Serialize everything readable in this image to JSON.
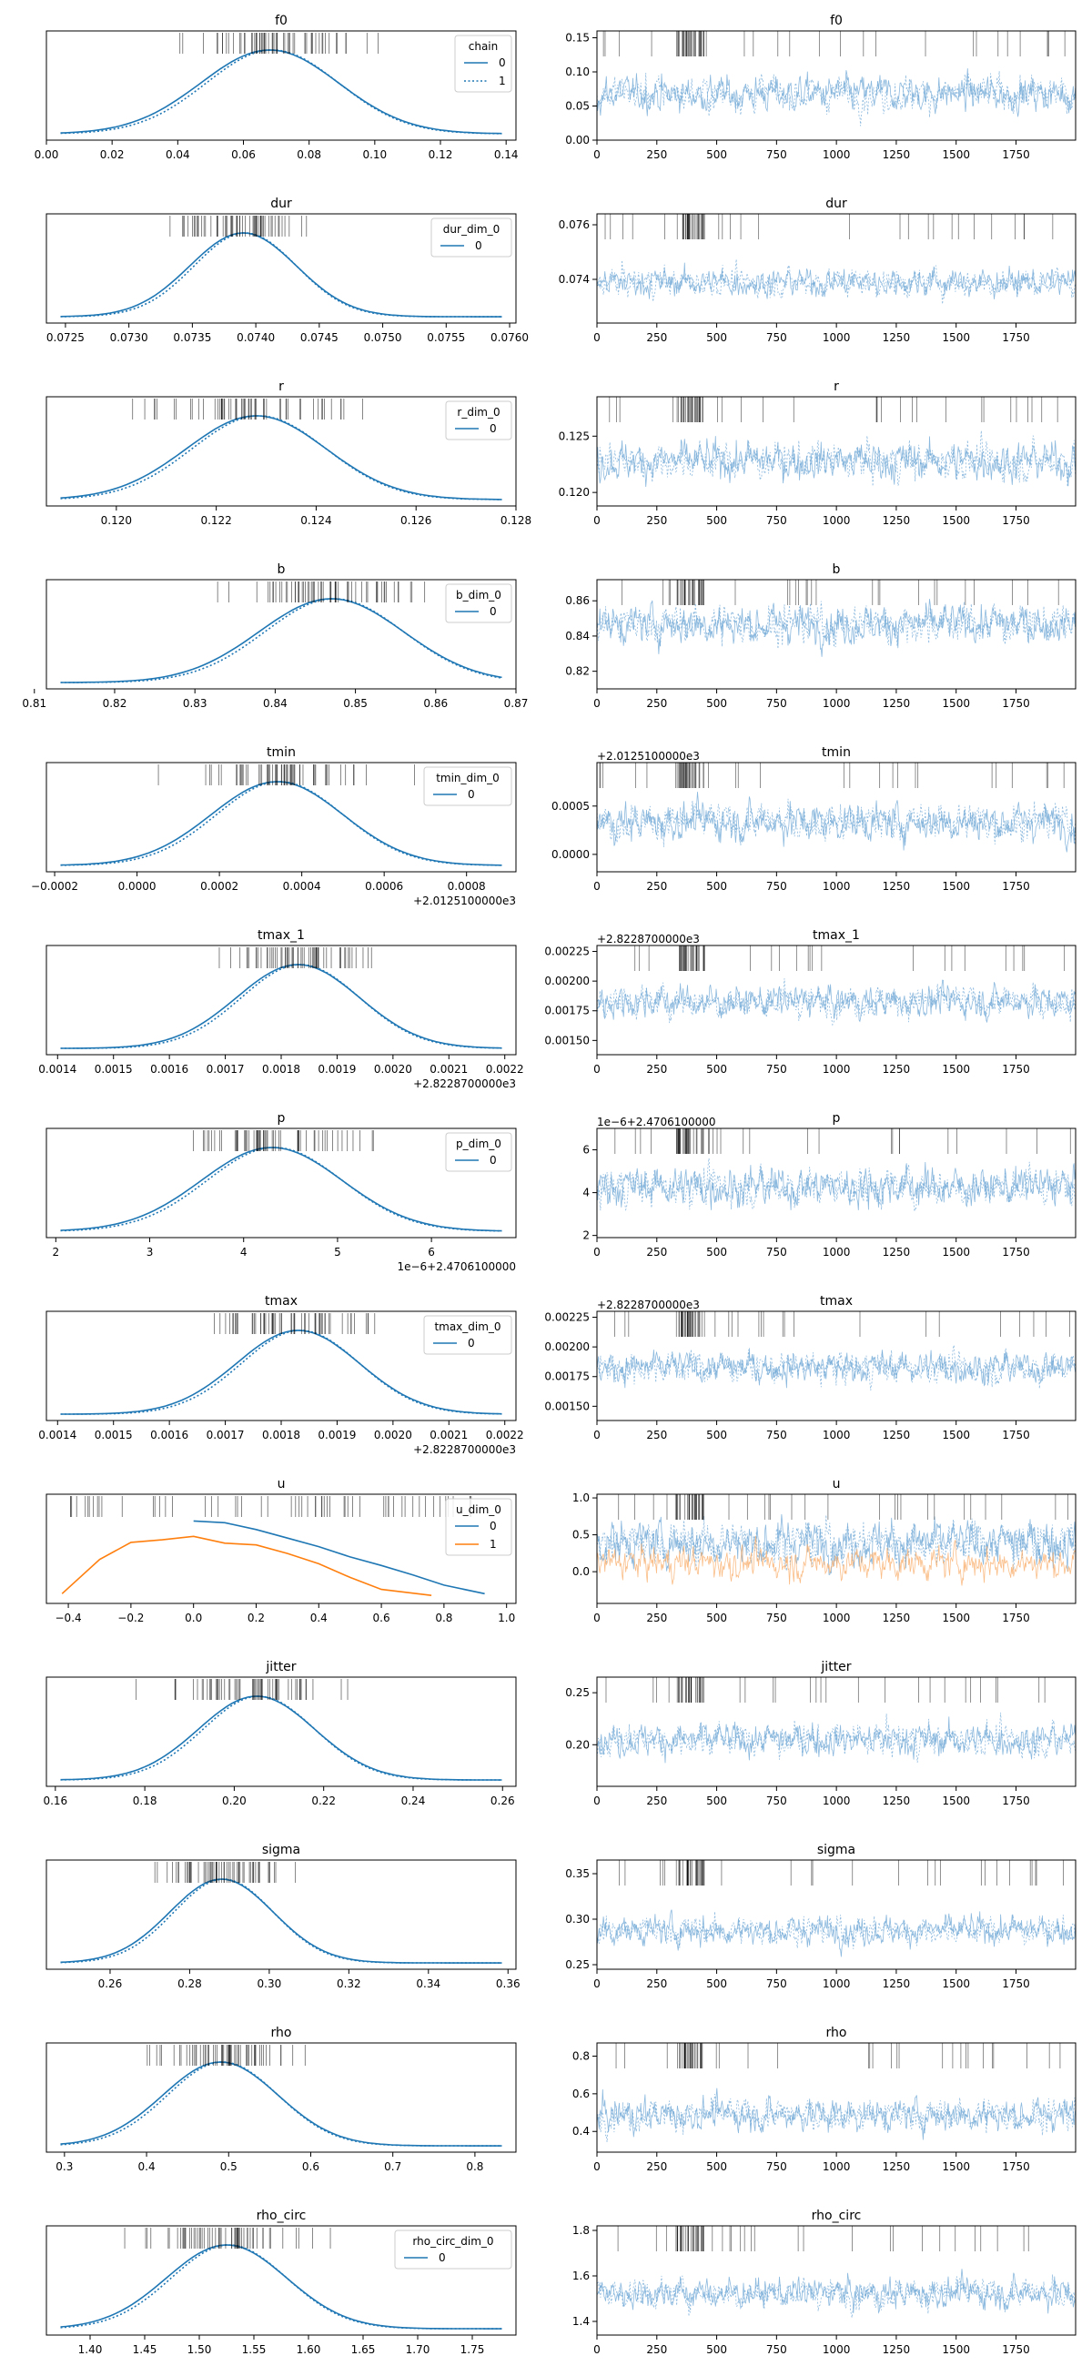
{
  "figure": {
    "type": "arviz-trace-plot"
  },
  "colors": {
    "chain0": "#1f77b4",
    "chain1": "#1f77b4",
    "series1": "#ff7f0e",
    "trace0": "#6fa8d6",
    "trace1": "#f9ad69",
    "rug": "#000000",
    "axes": "#000000"
  },
  "chart_data": [
    {
      "param": "f0",
      "type": "line",
      "kde": {
        "title": "f0",
        "xlim": [
          0.0,
          0.143
        ],
        "xticks": [
          0.0,
          0.02,
          0.04,
          0.06,
          0.08,
          0.1,
          0.12,
          0.14
        ],
        "xtick_labels": [
          "0.00",
          "0.02",
          "0.04",
          "0.06",
          "0.08",
          "0.10",
          "0.12",
          "0.14"
        ],
        "offset_label": "",
        "dist": {
          "mu": 0.068,
          "sd": 0.021
        },
        "legend": {
          "title": "chain",
          "placement": "upper right",
          "entries": [
            {
              "label": "0",
              "style": "solid"
            },
            {
              "label": "1",
              "style": "dotted"
            }
          ]
        },
        "series": [
          {
            "name": "0",
            "style": "solid"
          },
          {
            "name": "1",
            "style": "dotted"
          }
        ]
      },
      "trace": {
        "title": "f0",
        "ylim": [
          0.0,
          0.16
        ],
        "yticks": [
          0.0,
          0.05,
          0.1,
          0.15
        ],
        "ytick_labels": [
          "0.00",
          "0.05",
          "0.10",
          "0.15"
        ],
        "offset_label": "",
        "center": 0.068,
        "spread": 0.021
      }
    },
    {
      "param": "dur",
      "type": "line",
      "kde": {
        "title": "dur",
        "xlim": [
          0.07235,
          0.07605
        ],
        "xticks": [
          0.0725,
          0.073,
          0.0735,
          0.074,
          0.0745,
          0.075,
          0.0755,
          0.076
        ],
        "xtick_labels": [
          "0.0725",
          "0.0730",
          "0.0735",
          "0.0740",
          "0.0745",
          "0.0750",
          "0.0755",
          "0.0760"
        ],
        "offset_label": "",
        "dist": {
          "mu": 0.0739,
          "sd": 0.00042
        },
        "legend": {
          "title": "dur_dim_0",
          "placement": "upper right",
          "entries": [
            {
              "label": "0",
              "style": "solid"
            }
          ]
        },
        "series": [
          {
            "name": "0",
            "style": "solid"
          },
          {
            "name": "1",
            "style": "dotted"
          }
        ]
      },
      "trace": {
        "title": "dur",
        "ylim": [
          0.0724,
          0.0764
        ],
        "yticks": [
          0.074,
          0.076
        ],
        "ytick_labels": [
          "0.074",
          "0.076"
        ],
        "offset_label": "",
        "center": 0.0739,
        "spread": 0.00042
      }
    },
    {
      "param": "r",
      "type": "line",
      "kde": {
        "title": "r",
        "xlim": [
          0.1186,
          0.128
        ],
        "xticks": [
          0.12,
          0.122,
          0.124,
          0.126,
          0.128
        ],
        "xtick_labels": [
          "0.120",
          "0.122",
          "0.124",
          "0.126",
          "0.128"
        ],
        "offset_label": "",
        "dist": {
          "mu": 0.1228,
          "sd": 0.0014
        },
        "legend": {
          "title": "r_dim_0",
          "placement": "upper right",
          "entries": [
            {
              "label": "0",
              "style": "solid"
            }
          ]
        },
        "series": [
          {
            "name": "0",
            "style": "solid"
          },
          {
            "name": "1",
            "style": "dotted"
          }
        ]
      },
      "trace": {
        "title": "r",
        "ylim": [
          0.1188,
          0.1285
        ],
        "yticks": [
          0.12,
          0.125
        ],
        "ytick_labels": [
          "0.120",
          "0.125"
        ],
        "offset_label": "",
        "center": 0.1228,
        "spread": 0.0014
      }
    },
    {
      "param": "b",
      "type": "line",
      "kde": {
        "title": "b",
        "xlim": [
          0.8115,
          0.87
        ],
        "xticks": [
          0.81,
          0.82,
          0.83,
          0.84,
          0.85,
          0.86,
          0.87
        ],
        "xtick_labels": [
          "0.81",
          "0.82",
          "0.83",
          "0.84",
          "0.85",
          "0.86",
          "0.87"
        ],
        "offset_label": "",
        "dist": {
          "mu": 0.847,
          "sd": 0.009
        },
        "legend": {
          "title": "b_dim_0",
          "placement": "upper right",
          "entries": [
            {
              "label": "0",
              "style": "solid"
            }
          ]
        },
        "series": [
          {
            "name": "0",
            "style": "solid"
          },
          {
            "name": "1",
            "style": "dotted"
          }
        ]
      },
      "trace": {
        "title": "b",
        "ylim": [
          0.81,
          0.872
        ],
        "yticks": [
          0.82,
          0.84,
          0.86
        ],
        "ytick_labels": [
          "0.82",
          "0.84",
          "0.86"
        ],
        "offset_label": "",
        "center": 0.847,
        "spread": 0.009
      }
    },
    {
      "param": "tmin",
      "type": "line",
      "kde": {
        "title": "tmin",
        "xlim": [
          -0.00022,
          0.00092
        ],
        "xticks": [
          -0.0002,
          0.0,
          0.0002,
          0.0004,
          0.0006,
          0.0008
        ],
        "xtick_labels": [
          "−0.0002",
          "0.0000",
          "0.0002",
          "0.0004",
          "0.0006",
          "0.0008"
        ],
        "offset_label": "+2.0125100000e3",
        "dist": {
          "mu": 0.00034,
          "sd": 0.00016
        },
        "legend": {
          "title": "tmin_dim_0",
          "placement": "upper right",
          "entries": [
            {
              "label": "0",
              "style": "solid"
            }
          ]
        },
        "series": [
          {
            "name": "0",
            "style": "solid"
          },
          {
            "name": "1",
            "style": "dotted"
          }
        ]
      },
      "trace": {
        "title": "tmin",
        "ylim": [
          -0.00018,
          0.00095
        ],
        "yticks": [
          0.0,
          0.0005
        ],
        "ytick_labels": [
          "0.0000",
          "0.0005"
        ],
        "offset_label": "+2.0125100000e3",
        "center": 0.00034,
        "spread": 0.00016
      }
    },
    {
      "param": "tmax_1",
      "type": "line",
      "kde": {
        "title": "tmax_1",
        "xlim": [
          0.00138,
          0.00222
        ],
        "xticks": [
          0.0014,
          0.0015,
          0.0016,
          0.0017,
          0.0018,
          0.0019,
          0.002,
          0.0021,
          0.0022
        ],
        "xtick_labels": [
          "0.0014",
          "0.0015",
          "0.0016",
          "0.0017",
          "0.0018",
          "0.0019",
          "0.0020",
          "0.0021",
          "0.0022"
        ],
        "offset_label": "+2.8228700000e3",
        "dist": {
          "mu": 0.00183,
          "sd": 0.00011
        },
        "legend": null,
        "series": [
          {
            "name": "0",
            "style": "solid"
          },
          {
            "name": "1",
            "style": "dotted"
          }
        ]
      },
      "trace": {
        "title": "tmax_1",
        "ylim": [
          0.00138,
          0.0023
        ],
        "yticks": [
          0.0015,
          0.00175,
          0.002,
          0.00225
        ],
        "ytick_labels": [
          "0.00150",
          "0.00175",
          "0.00200",
          "0.00225"
        ],
        "offset_label": "+2.8228700000e3",
        "center": 0.00183,
        "spread": 0.00011
      }
    },
    {
      "param": "p",
      "type": "line",
      "kde": {
        "title": "p",
        "xlim": [
          1.9,
          6.9
        ],
        "xticks": [
          2,
          3,
          4,
          5,
          6
        ],
        "xtick_labels": [
          "2",
          "3",
          "4",
          "5",
          "6"
        ],
        "offset_label": "1e−6+2.4706100000",
        "dist": {
          "mu": 4.3,
          "sd": 0.75
        },
        "legend": {
          "title": "p_dim_0",
          "placement": "upper right",
          "entries": [
            {
              "label": "0",
              "style": "solid"
            }
          ]
        },
        "series": [
          {
            "name": "0",
            "style": "solid"
          },
          {
            "name": "1",
            "style": "dotted"
          }
        ]
      },
      "trace": {
        "title": "p",
        "ylim": [
          1.9,
          7.0
        ],
        "yticks": [
          2,
          4,
          6
        ],
        "ytick_labels": [
          "2",
          "4",
          "6"
        ],
        "offset_label": "1e−6+2.4706100000",
        "center": 4.3,
        "spread": 0.75
      }
    },
    {
      "param": "tmax",
      "type": "line",
      "kde": {
        "title": "tmax",
        "xlim": [
          0.00138,
          0.00222
        ],
        "xticks": [
          0.0014,
          0.0015,
          0.0016,
          0.0017,
          0.0018,
          0.0019,
          0.002,
          0.0021,
          0.0022
        ],
        "xtick_labels": [
          "0.0014",
          "0.0015",
          "0.0016",
          "0.0017",
          "0.0018",
          "0.0019",
          "0.0020",
          "0.0021",
          "0.0022"
        ],
        "offset_label": "+2.8228700000e3",
        "dist": {
          "mu": 0.00183,
          "sd": 0.00011
        },
        "legend": {
          "title": "tmax_dim_0",
          "placement": "upper right",
          "entries": [
            {
              "label": "0",
              "style": "solid"
            }
          ]
        },
        "series": [
          {
            "name": "0",
            "style": "solid"
          },
          {
            "name": "1",
            "style": "dotted"
          }
        ]
      },
      "trace": {
        "title": "tmax",
        "ylim": [
          0.00138,
          0.0023
        ],
        "yticks": [
          0.0015,
          0.00175,
          0.002,
          0.00225
        ],
        "ytick_labels": [
          "0.00150",
          "0.00175",
          "0.00200",
          "0.00225"
        ],
        "offset_label": "+2.8228700000e3",
        "center": 0.00183,
        "spread": 0.00011
      }
    },
    {
      "param": "u",
      "type": "line",
      "kde": {
        "title": "u",
        "xlim": [
          -0.47,
          1.03
        ],
        "xticks": [
          -0.4,
          -0.2,
          0.0,
          0.2,
          0.4,
          0.6,
          0.8,
          1.0
        ],
        "xtick_labels": [
          "−0.4",
          "−0.2",
          "0.0",
          "0.2",
          "0.4",
          "0.6",
          "0.8",
          "1.0"
        ],
        "offset_label": "",
        "legend": {
          "title": "u_dim_0",
          "placement": "upper right",
          "entries": [
            {
              "label": "0",
              "style": "solid",
              "color": "#1f77b4"
            },
            {
              "label": "1",
              "style": "solid",
              "color": "#ff7f0e"
            }
          ]
        },
        "series": [
          {
            "name": "0",
            "style": "solid",
            "color": "#1f77b4",
            "x": [
              0.0,
              0.1,
              0.2,
              0.3,
              0.4,
              0.5,
              0.6,
              0.7,
              0.8,
              0.93
            ],
            "y": [
              0.9,
              0.88,
              0.8,
              0.7,
              0.6,
              0.48,
              0.38,
              0.27,
              0.15,
              0.05
            ]
          },
          {
            "name": "1",
            "style": "solid",
            "color": "#ff7f0e",
            "x": [
              -0.42,
              -0.3,
              -0.2,
              -0.1,
              0.0,
              0.1,
              0.2,
              0.3,
              0.4,
              0.5,
              0.6,
              0.76
            ],
            "y": [
              0.05,
              0.45,
              0.65,
              0.68,
              0.72,
              0.64,
              0.62,
              0.52,
              0.4,
              0.24,
              0.1,
              0.03
            ]
          }
        ]
      },
      "trace": {
        "title": "u",
        "ylim": [
          -0.43,
          1.05
        ],
        "yticks": [
          0.0,
          0.5,
          1.0
        ],
        "ytick_labels": [
          "0.0",
          "0.5",
          "1.0"
        ],
        "offset_label": "",
        "center": 0.4,
        "spread": 0.25,
        "center2": 0.12,
        "spread2": 0.18
      }
    },
    {
      "param": "jitter",
      "type": "line",
      "kde": {
        "title": "jitter",
        "xlim": [
          0.158,
          0.263
        ],
        "xticks": [
          0.16,
          0.18,
          0.2,
          0.22,
          0.24,
          0.26
        ],
        "xtick_labels": [
          "0.16",
          "0.18",
          "0.20",
          "0.22",
          "0.24",
          "0.26"
        ],
        "offset_label": "",
        "dist": {
          "mu": 0.205,
          "sd": 0.013
        },
        "legend": null,
        "series": [
          {
            "name": "0",
            "style": "solid"
          },
          {
            "name": "1",
            "style": "dotted"
          }
        ]
      },
      "trace": {
        "title": "jitter",
        "ylim": [
          0.16,
          0.265
        ],
        "yticks": [
          0.2,
          0.25
        ],
        "ytick_labels": [
          "0.20",
          "0.25"
        ],
        "offset_label": "",
        "center": 0.205,
        "spread": 0.013
      }
    },
    {
      "param": "sigma",
      "type": "line",
      "kde": {
        "title": "sigma",
        "xlim": [
          0.244,
          0.362
        ],
        "xticks": [
          0.26,
          0.28,
          0.3,
          0.32,
          0.34,
          0.36
        ],
        "xtick_labels": [
          "0.26",
          "0.28",
          "0.30",
          "0.32",
          "0.34",
          "0.36"
        ],
        "offset_label": "",
        "dist": {
          "mu": 0.288,
          "sd": 0.013
        },
        "legend": null,
        "series": [
          {
            "name": "0",
            "style": "solid"
          },
          {
            "name": "1",
            "style": "dotted"
          }
        ]
      },
      "trace": {
        "title": "sigma",
        "ylim": [
          0.245,
          0.365
        ],
        "yticks": [
          0.25,
          0.3,
          0.35
        ],
        "ytick_labels": [
          "0.25",
          "0.30",
          "0.35"
        ],
        "offset_label": "",
        "center": 0.288,
        "spread": 0.013
      }
    },
    {
      "param": "rho",
      "type": "line",
      "kde": {
        "title": "rho",
        "xlim": [
          0.278,
          0.85
        ],
        "xticks": [
          0.3,
          0.4,
          0.5,
          0.6,
          0.7,
          0.8
        ],
        "xtick_labels": [
          "0.3",
          "0.4",
          "0.5",
          "0.6",
          "0.7",
          "0.8"
        ],
        "offset_label": "",
        "dist": {
          "mu": 0.49,
          "sd": 0.07
        },
        "legend": null,
        "series": [
          {
            "name": "0",
            "style": "solid"
          },
          {
            "name": "1",
            "style": "dotted"
          }
        ]
      },
      "trace": {
        "title": "rho",
        "ylim": [
          0.29,
          0.87
        ],
        "yticks": [
          0.4,
          0.6,
          0.8
        ],
        "ytick_labels": [
          "0.4",
          "0.6",
          "0.8"
        ],
        "offset_label": "",
        "center": 0.49,
        "spread": 0.07
      }
    },
    {
      "param": "rho_circ",
      "type": "line",
      "kde": {
        "title": "rho_circ",
        "xlim": [
          1.36,
          1.79
        ],
        "xticks": [
          1.4,
          1.45,
          1.5,
          1.55,
          1.6,
          1.65,
          1.7,
          1.75
        ],
        "xtick_labels": [
          "1.40",
          "1.45",
          "1.50",
          "1.55",
          "1.60",
          "1.65",
          "1.70",
          "1.75"
        ],
        "offset_label": "",
        "dist": {
          "mu": 1.525,
          "sd": 0.055
        },
        "legend": {
          "title": "rho_circ_dim_0",
          "placement": "upper right",
          "entries": [
            {
              "label": "0",
              "style": "solid"
            }
          ]
        },
        "series": [
          {
            "name": "0",
            "style": "solid"
          },
          {
            "name": "1",
            "style": "dotted"
          }
        ]
      },
      "trace": {
        "title": "rho_circ",
        "ylim": [
          1.34,
          1.82
        ],
        "yticks": [
          1.4,
          1.6,
          1.8
        ],
        "ytick_labels": [
          "1.4",
          "1.6",
          "1.8"
        ],
        "offset_label": "",
        "center": 1.525,
        "spread": 0.055
      }
    }
  ],
  "trace_axis": {
    "xlim": [
      0,
      1999
    ],
    "xticks": [
      0,
      250,
      500,
      750,
      1000,
      1250,
      1500,
      1750
    ],
    "xtick_labels": [
      "0",
      "250",
      "500",
      "750",
      "1000",
      "1250",
      "1500",
      "1750"
    ]
  }
}
